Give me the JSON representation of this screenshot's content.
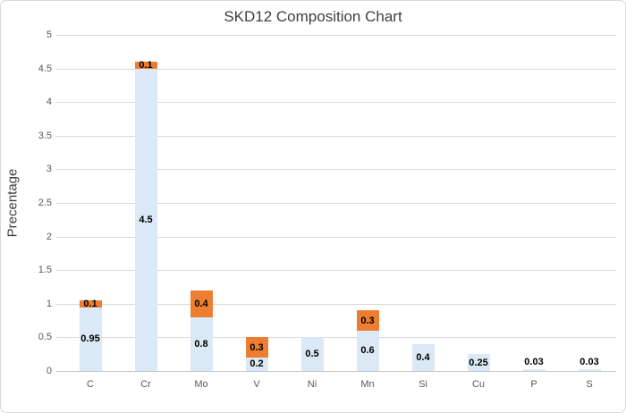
{
  "chart_data": {
    "type": "bar",
    "stacked": true,
    "title": "SKD12 Composition Chart",
    "ylabel": "Precentage",
    "xlabel": "",
    "categories": [
      "C",
      "Cr",
      "Mo",
      "V",
      "Ni",
      "Mn",
      "Si",
      "Cu",
      "P",
      "S"
    ],
    "series": [
      {
        "name": "series-1",
        "color": "#dbe8f5",
        "values": [
          0.95,
          4.5,
          0.8,
          0.2,
          0.5,
          0.6,
          0.4,
          0.25,
          0.03,
          0.03
        ]
      },
      {
        "name": "series-2",
        "color": "#ed7d31",
        "values": [
          0.1,
          0.1,
          0.4,
          0.3,
          0,
          0.3,
          0,
          0,
          0,
          0
        ]
      }
    ],
    "ylim": [
      0,
      5
    ],
    "ytick_step": 0.5,
    "grid": true,
    "legend": false,
    "data_labels": true,
    "colors": {
      "background": "#ffffff",
      "border": "#d9d9d9",
      "gridline": "#d9d9d9",
      "axis_line": "#c6c6c6",
      "axis_text": "#595959",
      "title_text": "#3f3f3f",
      "data_label_text": "#000000"
    }
  }
}
